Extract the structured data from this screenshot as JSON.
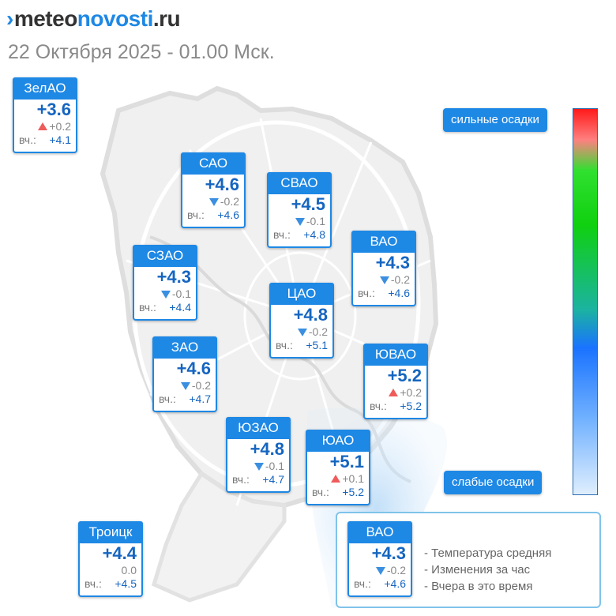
{
  "header": {
    "logo_mark": "›",
    "logo_part1": "meteo",
    "logo_part2": "novosti",
    "logo_part3": ".ru",
    "date": "22 Октября 2025 - 01.00 Мск."
  },
  "yesterday_label": "вч.:",
  "colors": {
    "accent": "#1e88e5",
    "temp": "#1565c0",
    "down": "#3a8fe0",
    "up": "#ef5b5b"
  },
  "districts": [
    {
      "name": "ЗелАО",
      "temp": "+3.6",
      "dir": "up",
      "change": "+0.2",
      "yesterday": "+4.1"
    },
    {
      "name": "САО",
      "temp": "+4.6",
      "dir": "down",
      "change": "-0.2",
      "yesterday": "+4.6"
    },
    {
      "name": "СВАО",
      "temp": "+4.5",
      "dir": "down",
      "change": "-0.1",
      "yesterday": "+4.8"
    },
    {
      "name": "ВАО",
      "temp": "+4.3",
      "dir": "down",
      "change": "-0.2",
      "yesterday": "+4.6"
    },
    {
      "name": "СЗАО",
      "temp": "+4.3",
      "dir": "down",
      "change": "-0.1",
      "yesterday": "+4.4"
    },
    {
      "name": "ЦАО",
      "temp": "+4.8",
      "dir": "down",
      "change": "-0.2",
      "yesterday": "+5.1"
    },
    {
      "name": "ЗАО",
      "temp": "+4.6",
      "dir": "down",
      "change": "-0.2",
      "yesterday": "+4.7"
    },
    {
      "name": "ЮВАО",
      "temp": "+5.2",
      "dir": "up",
      "change": "+0.2",
      "yesterday": "+5.2"
    },
    {
      "name": "ЮЗАО",
      "temp": "+4.8",
      "dir": "down",
      "change": "-0.1",
      "yesterday": "+4.7"
    },
    {
      "name": "ЮАО",
      "temp": "+5.1",
      "dir": "up",
      "change": "+0.1",
      "yesterday": "+5.2"
    },
    {
      "name": "Троицк",
      "temp": "+4.4",
      "dir": "none",
      "change": "0.0",
      "yesterday": "+4.5"
    }
  ],
  "scale": {
    "top_label": "сильные осадки",
    "bottom_label": "слабые осадки"
  },
  "legend": {
    "sample": {
      "name": "ВАО",
      "temp": "+4.3",
      "dir": "down",
      "change": "-0.2",
      "yesterday": "+4.6"
    },
    "line1": "- Температура средняя",
    "line2": "- Изменения за час",
    "line3": "- Вчера в это время"
  }
}
